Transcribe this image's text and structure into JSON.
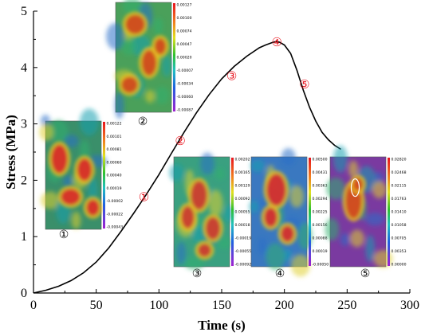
{
  "chart_data": {
    "type": "line",
    "xlabel": "Time (s)",
    "ylabel": "Stress (MPa)",
    "xlim": [
      0,
      300
    ],
    "ylim": [
      0,
      5
    ],
    "x_ticks": [
      "0",
      "50",
      "100",
      "150",
      "200",
      "250",
      "300"
    ],
    "y_ticks": [
      "0",
      "1",
      "2",
      "3",
      "4",
      "5"
    ],
    "grid": false,
    "series": [
      {
        "color": "#000000",
        "x": [
          0,
          10,
          20,
          30,
          40,
          50,
          60,
          70,
          80,
          90,
          100,
          110,
          120,
          130,
          140,
          150,
          160,
          170,
          180,
          185,
          190,
          193,
          196,
          200,
          205,
          210,
          215,
          220,
          225,
          230,
          235,
          240,
          245
        ],
        "y": [
          0,
          0.05,
          0.12,
          0.22,
          0.36,
          0.55,
          0.8,
          1.1,
          1.42,
          1.75,
          2.1,
          2.48,
          2.85,
          3.2,
          3.52,
          3.8,
          4.02,
          4.2,
          4.35,
          4.4,
          4.44,
          4.46,
          4.45,
          4.4,
          4.25,
          3.95,
          3.6,
          3.3,
          3.05,
          2.85,
          2.72,
          2.62,
          2.55
        ]
      }
    ],
    "markers": [
      {
        "label": "①",
        "x": 88,
        "y": 1.7
      },
      {
        "label": "②",
        "x": 117,
        "y": 2.7
      },
      {
        "label": "③",
        "x": 158,
        "y": 3.85
      },
      {
        "label": "④",
        "x": 194,
        "y": 4.45
      },
      {
        "label": "⑤",
        "x": 216,
        "y": 3.7
      }
    ]
  },
  "insets": [
    {
      "name": "inset-1",
      "caption": "①",
      "colorbar": [
        "0.00122",
        "0.00101",
        "0.00081",
        "0.00060",
        "0.00040",
        "0.00019",
        "-0.00002",
        "-0.00022",
        "-0.00043"
      ],
      "peak_color": "#d8202a",
      "base_color": "#3a8f6a"
    },
    {
      "name": "inset-2",
      "caption": "②",
      "colorbar": [
        "0.00127",
        "0.00100",
        "0.00074",
        "0.00047",
        "0.00020",
        "-0.00007",
        "-0.00034",
        "-0.00060",
        "-0.00087"
      ],
      "peak_color": "#d04020",
      "base_color": "#4aa05a"
    },
    {
      "name": "inset-3",
      "caption": "③",
      "colorbar": [
        "0.00202",
        "0.00165",
        "0.00129",
        "0.00092",
        "0.00055",
        "0.00018",
        "-0.00019",
        "-0.00055",
        "-0.00092"
      ],
      "peak_color": "#c83030",
      "base_color": "#3aa080"
    },
    {
      "name": "inset-4",
      "caption": "④",
      "colorbar": [
        "0.00500",
        "0.00431",
        "0.00363",
        "0.00294",
        "0.00225",
        "0.00156",
        "0.00088",
        "0.00019",
        "-0.00050"
      ],
      "peak_color": "#d02030",
      "base_color": "#3a78c0"
    },
    {
      "name": "inset-5",
      "caption": "⑤",
      "colorbar": [
        "0.02820",
        "0.02468",
        "0.02115",
        "0.01763",
        "0.01410",
        "0.01058",
        "0.00705",
        "0.00353",
        "0.00000"
      ],
      "peak_color": "#d04020",
      "base_color": "#7a3aa0"
    }
  ]
}
